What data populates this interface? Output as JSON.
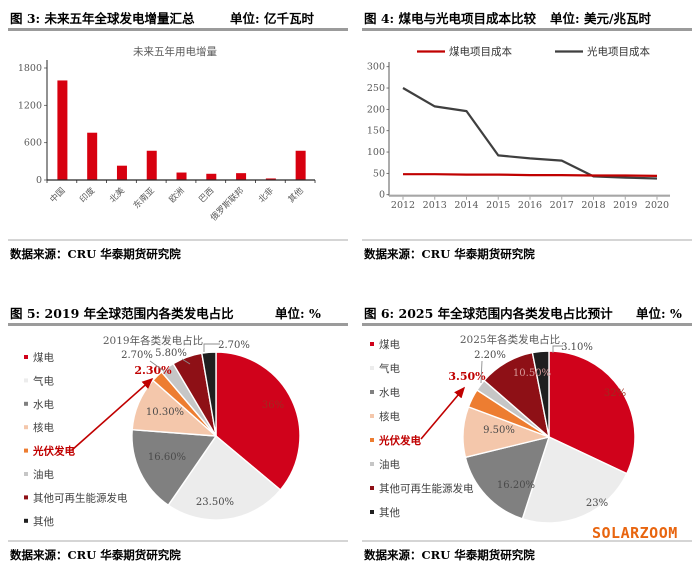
{
  "figures": {
    "fig3": {
      "title": "图 3:  未来五年全球发电增量汇总",
      "unit": "单位: 亿千瓦时",
      "source": "数据来源：CRU  华泰期货研究院"
    },
    "fig4": {
      "title": "图 4:  煤电与光电项目成本比较",
      "unit": "单位: 美元/兆瓦时",
      "source": "数据来源：CRU  华泰期货研究院"
    },
    "fig5": {
      "title": "图 5:  2019 年全球范围内各类发电占比",
      "unit": "单位: %",
      "source": "数据来源：CRU  华泰期货研究院"
    },
    "fig6": {
      "title": "图 6:  2025 年全球范围内各类发电占比预计",
      "unit": "单位: %",
      "source": "数据来源：CRU  华泰期货研究院"
    }
  },
  "watermark": "SOLARZOOM",
  "chart_data": [
    {
      "id": "chart3",
      "type": "bar",
      "title": "未来五年用电增量",
      "categories": [
        "中国",
        "印度",
        "北美",
        "东南亚",
        "欧洲",
        "巴西",
        "俄罗斯联邦",
        "北非",
        "其他"
      ],
      "values": [
        1600,
        760,
        230,
        470,
        120,
        100,
        110,
        25,
        470
      ],
      "bar_color": "#d7000f",
      "ylim": [
        0,
        1800
      ],
      "yticks": [
        0,
        600,
        1200,
        1800
      ],
      "grid": false
    },
    {
      "id": "chart4",
      "type": "line",
      "x": [
        2012,
        2013,
        2014,
        2015,
        2016,
        2017,
        2018,
        2019,
        2020
      ],
      "series": [
        {
          "name": "煤电项目成本",
          "color": "#c00000",
          "values": [
            48,
            48,
            47,
            47,
            46,
            46,
            45,
            45,
            44
          ]
        },
        {
          "name": "光电项目成本",
          "color": "#3f3f3f",
          "values": [
            250,
            207,
            196,
            92,
            85,
            80,
            43,
            40,
            38
          ]
        }
      ],
      "ylim": [
        0,
        300
      ],
      "yticks": [
        0,
        50,
        100,
        150,
        200,
        250,
        300
      ],
      "legend_position": "top",
      "grid": false
    },
    {
      "id": "chart5",
      "type": "pie",
      "title": "2019年各类发电占比",
      "slices": [
        {
          "label": "煤电",
          "value": 36.1,
          "display": "36%",
          "color": "#d0021b"
        },
        {
          "label": "气电",
          "value": 23.5,
          "display": "23.50%",
          "color": "#ececec"
        },
        {
          "label": "水电",
          "value": 16.6,
          "display": "16.60%",
          "color": "#808080"
        },
        {
          "label": "核电",
          "value": 10.3,
          "display": "10.30%",
          "color": "#f4c7ab"
        },
        {
          "label": "光伏发电",
          "value": 2.3,
          "display": "2.30%",
          "color": "#ed7d31"
        },
        {
          "label": "油电",
          "value": 2.7,
          "display": "2.70%",
          "color": "#c6c6c6"
        },
        {
          "label": "其他可再生能源发电",
          "value": 5.8,
          "display": "5.80%",
          "color": "#8e1016"
        },
        {
          "label": "其他",
          "value": 2.7,
          "display": "2.70%",
          "color": "#1f1f1f"
        }
      ],
      "highlight_label": "光伏发电",
      "highlight_color": "#c00000"
    },
    {
      "id": "chart6",
      "type": "pie",
      "title": "2025年各类发电占比",
      "slices": [
        {
          "label": "煤电",
          "value": 32.0,
          "display": "32%",
          "color": "#d0021b"
        },
        {
          "label": "气电",
          "value": 23.0,
          "display": "23%",
          "color": "#ececec"
        },
        {
          "label": "水电",
          "value": 16.2,
          "display": "16.20%",
          "color": "#808080"
        },
        {
          "label": "核电",
          "value": 9.5,
          "display": "9.50%",
          "color": "#f4c7ab"
        },
        {
          "label": "光伏发电",
          "value": 3.5,
          "display": "3.50%",
          "color": "#ed7d31"
        },
        {
          "label": "油电",
          "value": 2.2,
          "display": "2.20%",
          "color": "#c6c6c6"
        },
        {
          "label": "其他可再生能源发电",
          "value": 10.5,
          "display": "10.50%",
          "color": "#8e1016"
        },
        {
          "label": "其他",
          "value": 3.1,
          "display": "3.10%",
          "color": "#1f1f1f"
        }
      ],
      "highlight_label": "光伏发电",
      "highlight_color": "#c00000"
    }
  ]
}
